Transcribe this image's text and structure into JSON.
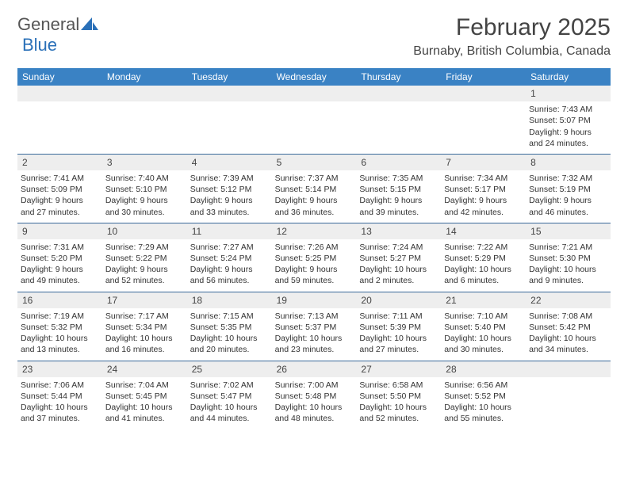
{
  "logo": {
    "text1": "General",
    "text2": "Blue"
  },
  "title": "February 2025",
  "location": "Burnaby, British Columbia, Canada",
  "colors": {
    "header_bg": "#3a82c4",
    "header_text": "#ffffff",
    "daynum_bg": "#eeeeee",
    "border": "#3a6a9a",
    "logo_blue": "#2a70b8"
  },
  "daysOfWeek": [
    "Sunday",
    "Monday",
    "Tuesday",
    "Wednesday",
    "Thursday",
    "Friday",
    "Saturday"
  ],
  "weeks": [
    [
      null,
      null,
      null,
      null,
      null,
      null,
      {
        "num": "1",
        "sunrise": "7:43 AM",
        "sunset": "5:07 PM",
        "daylight": "9 hours and 24 minutes."
      }
    ],
    [
      {
        "num": "2",
        "sunrise": "7:41 AM",
        "sunset": "5:09 PM",
        "daylight": "9 hours and 27 minutes."
      },
      {
        "num": "3",
        "sunrise": "7:40 AM",
        "sunset": "5:10 PM",
        "daylight": "9 hours and 30 minutes."
      },
      {
        "num": "4",
        "sunrise": "7:39 AM",
        "sunset": "5:12 PM",
        "daylight": "9 hours and 33 minutes."
      },
      {
        "num": "5",
        "sunrise": "7:37 AM",
        "sunset": "5:14 PM",
        "daylight": "9 hours and 36 minutes."
      },
      {
        "num": "6",
        "sunrise": "7:35 AM",
        "sunset": "5:15 PM",
        "daylight": "9 hours and 39 minutes."
      },
      {
        "num": "7",
        "sunrise": "7:34 AM",
        "sunset": "5:17 PM",
        "daylight": "9 hours and 42 minutes."
      },
      {
        "num": "8",
        "sunrise": "7:32 AM",
        "sunset": "5:19 PM",
        "daylight": "9 hours and 46 minutes."
      }
    ],
    [
      {
        "num": "9",
        "sunrise": "7:31 AM",
        "sunset": "5:20 PM",
        "daylight": "9 hours and 49 minutes."
      },
      {
        "num": "10",
        "sunrise": "7:29 AM",
        "sunset": "5:22 PM",
        "daylight": "9 hours and 52 minutes."
      },
      {
        "num": "11",
        "sunrise": "7:27 AM",
        "sunset": "5:24 PM",
        "daylight": "9 hours and 56 minutes."
      },
      {
        "num": "12",
        "sunrise": "7:26 AM",
        "sunset": "5:25 PM",
        "daylight": "9 hours and 59 minutes."
      },
      {
        "num": "13",
        "sunrise": "7:24 AM",
        "sunset": "5:27 PM",
        "daylight": "10 hours and 2 minutes."
      },
      {
        "num": "14",
        "sunrise": "7:22 AM",
        "sunset": "5:29 PM",
        "daylight": "10 hours and 6 minutes."
      },
      {
        "num": "15",
        "sunrise": "7:21 AM",
        "sunset": "5:30 PM",
        "daylight": "10 hours and 9 minutes."
      }
    ],
    [
      {
        "num": "16",
        "sunrise": "7:19 AM",
        "sunset": "5:32 PM",
        "daylight": "10 hours and 13 minutes."
      },
      {
        "num": "17",
        "sunrise": "7:17 AM",
        "sunset": "5:34 PM",
        "daylight": "10 hours and 16 minutes."
      },
      {
        "num": "18",
        "sunrise": "7:15 AM",
        "sunset": "5:35 PM",
        "daylight": "10 hours and 20 minutes."
      },
      {
        "num": "19",
        "sunrise": "7:13 AM",
        "sunset": "5:37 PM",
        "daylight": "10 hours and 23 minutes."
      },
      {
        "num": "20",
        "sunrise": "7:11 AM",
        "sunset": "5:39 PM",
        "daylight": "10 hours and 27 minutes."
      },
      {
        "num": "21",
        "sunrise": "7:10 AM",
        "sunset": "5:40 PM",
        "daylight": "10 hours and 30 minutes."
      },
      {
        "num": "22",
        "sunrise": "7:08 AM",
        "sunset": "5:42 PM",
        "daylight": "10 hours and 34 minutes."
      }
    ],
    [
      {
        "num": "23",
        "sunrise": "7:06 AM",
        "sunset": "5:44 PM",
        "daylight": "10 hours and 37 minutes."
      },
      {
        "num": "24",
        "sunrise": "7:04 AM",
        "sunset": "5:45 PM",
        "daylight": "10 hours and 41 minutes."
      },
      {
        "num": "25",
        "sunrise": "7:02 AM",
        "sunset": "5:47 PM",
        "daylight": "10 hours and 44 minutes."
      },
      {
        "num": "26",
        "sunrise": "7:00 AM",
        "sunset": "5:48 PM",
        "daylight": "10 hours and 48 minutes."
      },
      {
        "num": "27",
        "sunrise": "6:58 AM",
        "sunset": "5:50 PM",
        "daylight": "10 hours and 52 minutes."
      },
      {
        "num": "28",
        "sunrise": "6:56 AM",
        "sunset": "5:52 PM",
        "daylight": "10 hours and 55 minutes."
      },
      null
    ]
  ],
  "labels": {
    "sunrise": "Sunrise:",
    "sunset": "Sunset:",
    "daylight": "Daylight:"
  }
}
